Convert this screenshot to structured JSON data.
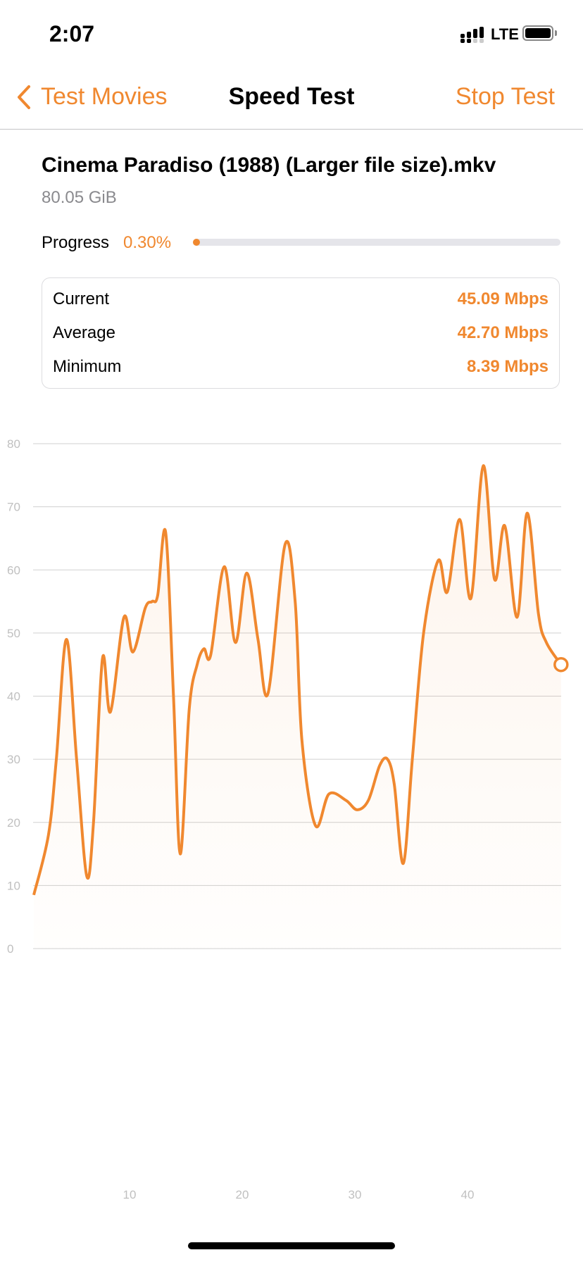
{
  "status_bar": {
    "time": "2:07",
    "network": "LTE",
    "signal_icon": "signal-bars-icon",
    "battery_icon": "battery-full-icon"
  },
  "nav": {
    "back_label": "Test Movies",
    "title": "Speed Test",
    "stop_label": "Stop Test"
  },
  "file": {
    "name": "Cinema Paradiso (1988) (Larger file size).mkv",
    "size": "80.05 GiB"
  },
  "progress": {
    "label": "Progress",
    "value_text": "0.30%",
    "percent": 0.3
  },
  "stats": [
    {
      "label": "Current",
      "value": "45.09 Mbps"
    },
    {
      "label": "Average",
      "value": "42.70 Mbps"
    },
    {
      "label": "Minimum",
      "value": "8.39 Mbps"
    }
  ],
  "colors": {
    "accent": "#f0882f",
    "grid": "#d0d0d0",
    "axis_text": "#c0c0c0"
  },
  "chart_data": {
    "type": "area",
    "ylim": [
      0,
      80
    ],
    "yticks": [
      0,
      10,
      20,
      30,
      40,
      50,
      60,
      70,
      80
    ],
    "xticks": [
      10,
      20,
      30,
      40
    ],
    "grid": true,
    "x": [
      1.5,
      2.8,
      3.5,
      4.4,
      5.3,
      6.2,
      6.8,
      7.6,
      8.3,
      9.5,
      10.3,
      11.4,
      12,
      12.5,
      13.2,
      13.9,
      14.5,
      15.3,
      16,
      16.6,
      17.2,
      18.4,
      19.4,
      20.4,
      21.4,
      22.3,
      23.8,
      24.7,
      25.3,
      26.5,
      27.7,
      29.2,
      30.2,
      31.2,
      32.2,
      32.9,
      33.5,
      34.3,
      35.1,
      36.1,
      37.4,
      38.2,
      39.3,
      40.3,
      41.4,
      42.4,
      43.3,
      44.4,
      45.3,
      46.3,
      47,
      48.3
    ],
    "y": [
      8.5,
      18,
      30,
      49,
      30,
      11.5,
      20,
      46,
      37.5,
      52.5,
      47,
      54,
      55,
      56,
      66,
      40,
      15,
      38,
      45,
      47.5,
      46.5,
      60.5,
      48.5,
      59.5,
      49,
      40.5,
      64,
      55,
      33,
      19.5,
      24.5,
      23.5,
      22,
      23.5,
      29,
      30,
      26,
      13.5,
      30,
      50,
      61.5,
      56.5,
      68,
      55.5,
      76.5,
      58.5,
      67,
      52.5,
      69,
      53,
      48.5,
      45
    ]
  }
}
